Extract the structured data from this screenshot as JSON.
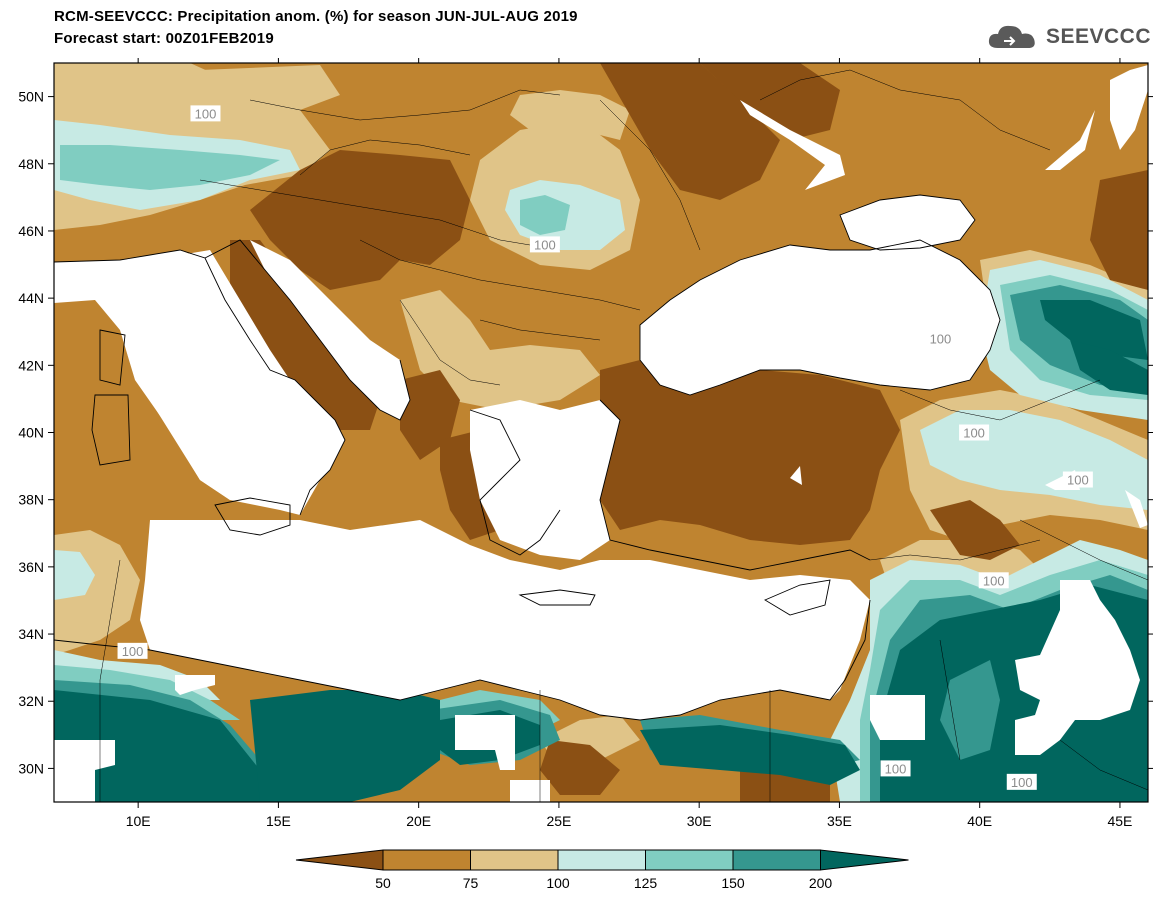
{
  "title_line1": "RCM-SEEVCCC: Precipitation anom. (%) for season JUN-JUL-AUG 2019",
  "title_line2": "Forecast start: 00Z01FEB2019",
  "logo_text": "SEEVCCC",
  "map": {
    "lon_labels": [
      "10E",
      "15E",
      "20E",
      "25E",
      "30E",
      "35E",
      "40E",
      "45E"
    ],
    "lat_labels": [
      "50N",
      "48N",
      "46N",
      "44N",
      "42N",
      "40N",
      "38N",
      "36N",
      "34N",
      "32N",
      "30N"
    ],
    "contour_labels": [
      {
        "text": "100",
        "lon": 12.4,
        "lat": 49.5
      },
      {
        "text": "100",
        "lon": 24.5,
        "lat": 45.6
      },
      {
        "text": "100",
        "lon": 38.6,
        "lat": 42.8
      },
      {
        "text": "100",
        "lon": 39.8,
        "lat": 40.0
      },
      {
        "text": "100",
        "lon": 43.5,
        "lat": 38.6
      },
      {
        "text": "100",
        "lon": 40.5,
        "lat": 35.6
      },
      {
        "text": "100",
        "lon": 9.8,
        "lat": 33.5
      },
      {
        "text": "100",
        "lon": 37.0,
        "lat": 30.0
      },
      {
        "text": "100",
        "lon": 41.5,
        "lat": 29.6
      }
    ]
  },
  "colorbar": {
    "labels": [
      "50",
      "75",
      "100",
      "125",
      "150",
      "200"
    ],
    "colors": [
      "#8B5014",
      "#BF8430",
      "#E0C488",
      "#C7EAE4",
      "#80CDC1",
      "#35978F",
      "#01665E"
    ]
  }
}
